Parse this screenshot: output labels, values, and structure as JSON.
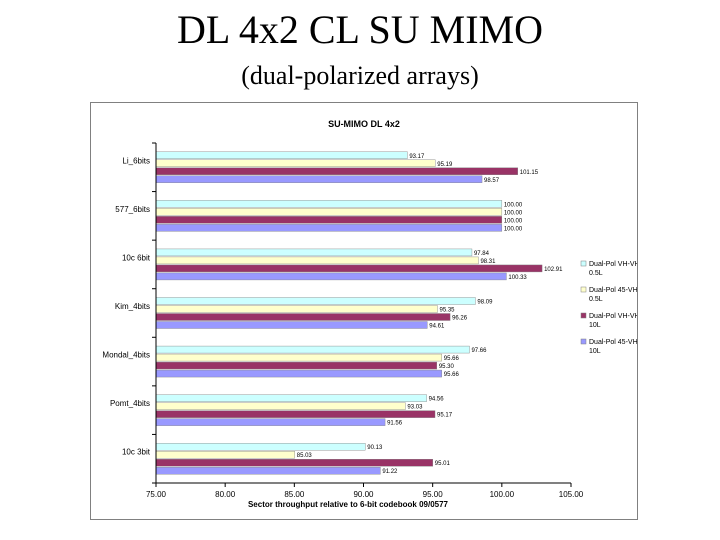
{
  "slide": {
    "title": "DL 4x2 CL SU MIMO",
    "subtitle": "(dual-polarized arrays)"
  },
  "chart_data": {
    "type": "bar",
    "orientation": "horizontal",
    "title": "SU-MIMO DL 4x2",
    "xlabel": "Sector throughput relative to 6-bit codebook 09/0577",
    "ylabel": "",
    "xlim": [
      75,
      105
    ],
    "xticks": [
      "75.00",
      "80.00",
      "85.00",
      "90.00",
      "95.00",
      "100.00",
      "105.00"
    ],
    "grid": false,
    "legend_position": "right",
    "categories": [
      "Li_6bits",
      "577_6bits",
      "10c 6bit",
      "Kim_4bits",
      "Mondal_4bits",
      "Pomt_4bits",
      "10c 3bit"
    ],
    "series": [
      {
        "name": "Dual-Pol VH-VH 0.5L",
        "color": "#ccffff",
        "values": [
          93.17,
          100.0,
          97.84,
          98.09,
          97.66,
          94.56,
          90.13
        ]
      },
      {
        "name": "Dual-Pol 45-VH 0.5L",
        "color": "#ffffcc",
        "values": [
          95.19,
          100.0,
          98.31,
          95.35,
          95.66,
          93.03,
          85.03
        ]
      },
      {
        "name": "Dual-Pol VH-VH 10L",
        "color": "#993366",
        "values": [
          101.15,
          100.0,
          102.91,
          96.26,
          95.3,
          95.17,
          95.01
        ]
      },
      {
        "name": "Dual-Pol 45-VH 10L",
        "color": "#9999ff",
        "values": [
          98.57,
          100.0,
          100.33,
          94.61,
          95.66,
          91.56,
          91.22
        ]
      }
    ],
    "data_labels": [
      [
        "93.17",
        "95.19",
        "101.15",
        "98.57"
      ],
      [
        "100.00",
        "100.00",
        "100.00",
        "100.00"
      ],
      [
        "97.84",
        "98.31",
        "102.91",
        "100.33"
      ],
      [
        "98.09",
        "95.35",
        "96.26",
        "94.61"
      ],
      [
        "97.66",
        "95.66",
        "95.30",
        "95.66"
      ],
      [
        "94.56",
        "93.03",
        "95.17",
        "91.56"
      ],
      [
        "90.13",
        "85.03",
        "95.01",
        "91.22"
      ]
    ]
  }
}
